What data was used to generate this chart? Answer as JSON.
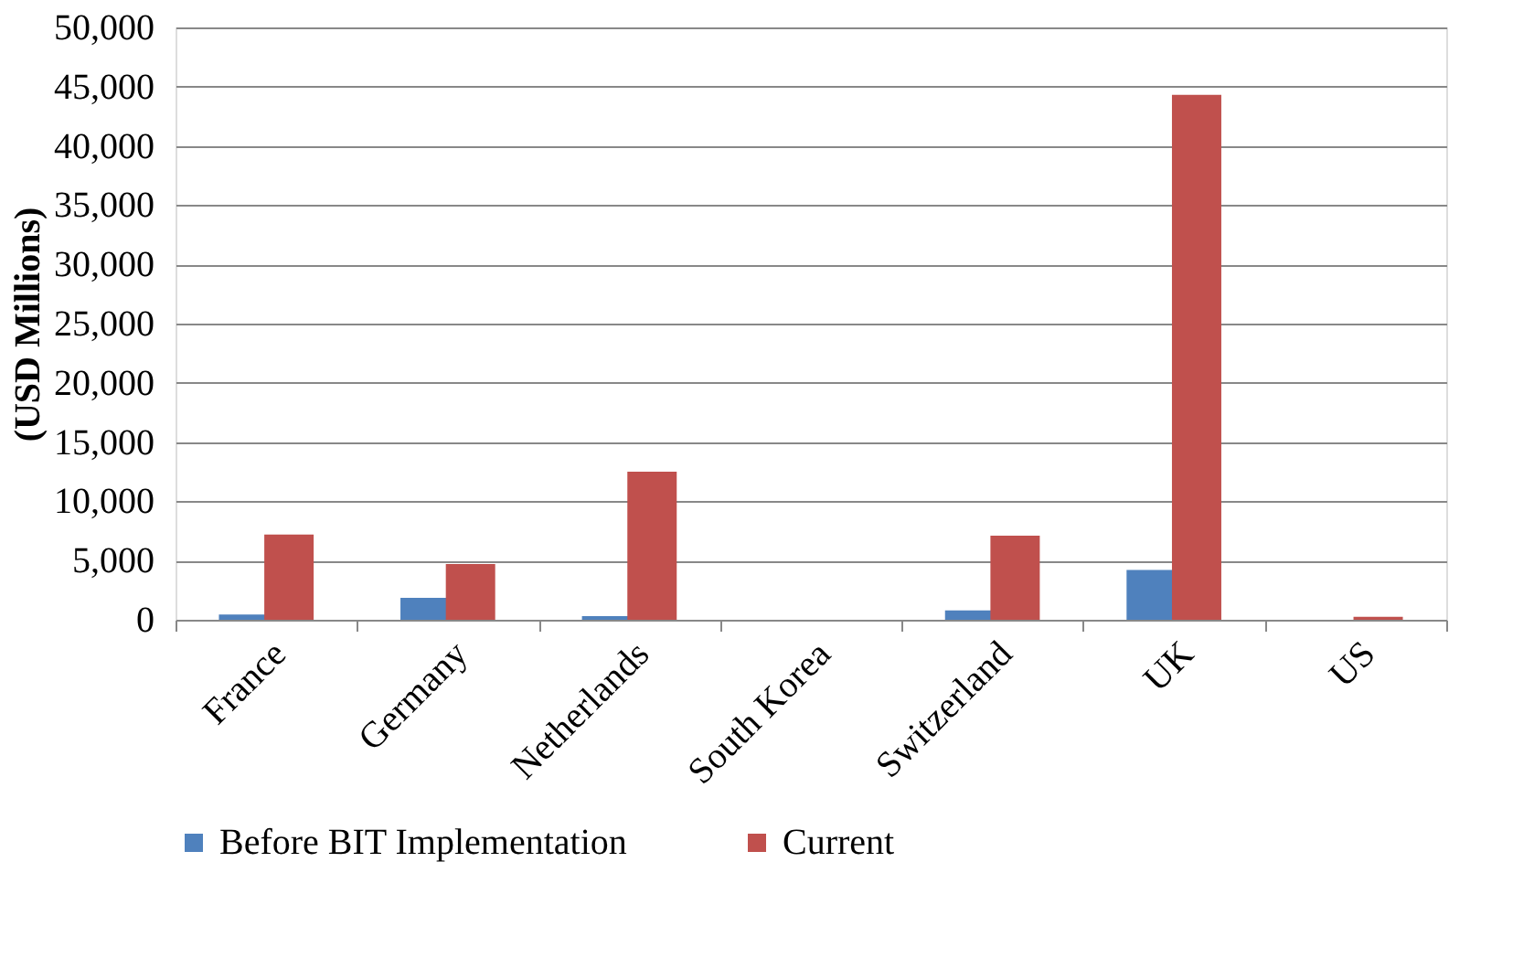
{
  "chart_data": {
    "type": "bar",
    "ylabel": "(USD Millions)",
    "categories": [
      "France",
      "Germany",
      "Netherlands",
      "South Korea",
      "Switzerland",
      "UK",
      "US"
    ],
    "series": [
      {
        "name": "Before BIT Implementation",
        "color": "#4f81bd",
        "values": [
          450,
          1850,
          300,
          0,
          800,
          4200,
          0
        ]
      },
      {
        "name": "Current",
        "color": "#c0504d",
        "values": [
          7200,
          4700,
          12500,
          0,
          7100,
          44300,
          250
        ]
      }
    ],
    "ylim": [
      0,
      50000
    ],
    "yticks": [
      {
        "value": 0,
        "label": "0"
      },
      {
        "value": 5000,
        "label": "5,000"
      },
      {
        "value": 10000,
        "label": "10,000"
      },
      {
        "value": 15000,
        "label": "15,000"
      },
      {
        "value": 20000,
        "label": "20,000"
      },
      {
        "value": 25000,
        "label": "25,000"
      },
      {
        "value": 30000,
        "label": "30,000"
      },
      {
        "value": 35000,
        "label": "35,000"
      },
      {
        "value": 40000,
        "label": "40,000"
      },
      {
        "value": 45000,
        "label": "45,000"
      },
      {
        "value": 50000,
        "label": "50,000"
      }
    ],
    "grid": "y",
    "legend": "bottom"
  }
}
